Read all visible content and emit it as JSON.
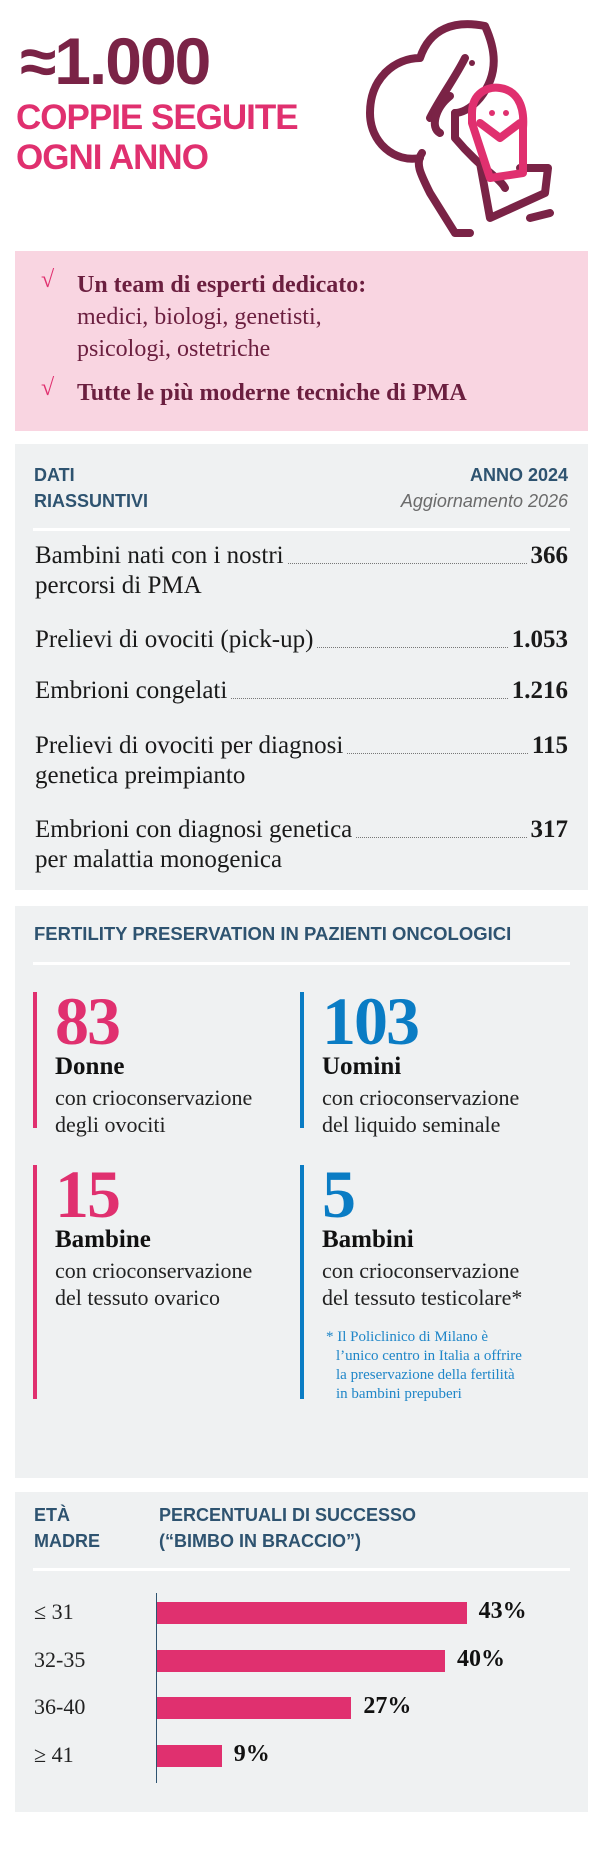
{
  "header": {
    "headline": "≈1.000",
    "subline1": "COPPIE SEGUITE",
    "subline2": "OGNI ANNO",
    "illustration": "mother-holding-baby-icon"
  },
  "highlights": {
    "check_icon": "√",
    "items": [
      {
        "bold": "Un team di esperti dedicato:",
        "lines": [
          "medici, biologi, genetisti,",
          "psicologi, ostetriche"
        ]
      },
      {
        "bold": "Tutte le più moderne tecniche di PMA",
        "lines": []
      }
    ]
  },
  "summary": {
    "title_line1": "DATI",
    "title_line2": "RIASSUNTIVI",
    "year": "ANNO 2024",
    "update": "Aggiornamento 2026",
    "rows": [
      {
        "label1": "Bambini nati con i nostri",
        "label2": "percorsi di PMA",
        "value": "366"
      },
      {
        "label1": "Prelievi di ovociti (pick-up)",
        "label2": "",
        "value": "1.053"
      },
      {
        "label1": "Embrioni congelati",
        "label2": "",
        "value": "1.216"
      },
      {
        "label1": "Prelievi di ovociti per diagnosi",
        "label2": "genetica preimpianto",
        "value": "115"
      },
      {
        "label1": "Embrioni con diagnosi genetica",
        "label2": "per malattia monogenica",
        "value": "317"
      }
    ]
  },
  "fertility": {
    "title": "FERTILITY PRESERVATION IN PAZIENTI ONCOLOGICI",
    "stats": [
      {
        "number": "83",
        "who": "Donne",
        "desc1": "con crioconservazione",
        "desc2": "degli ovociti",
        "color": "#e0306f"
      },
      {
        "number": "103",
        "who": "Uomini",
        "desc1": "con crioconservazione",
        "desc2": "del liquido seminale",
        "color": "#0a7cc4"
      },
      {
        "number": "15",
        "who": "Bambine",
        "desc1": "con crioconservazione",
        "desc2": "del tessuto ovarico",
        "color": "#e0306f"
      },
      {
        "number": "5",
        "who": "Bambini",
        "desc1": "con crioconservazione",
        "desc2": "del tessuto testicolare*",
        "color": "#0a7cc4"
      }
    ],
    "footnote": [
      "* Il Policlinico di Milano è",
      "l’unico centro in Italia a offrire",
      "la preservazione della fertilità",
      "in bambini prepuberi"
    ]
  },
  "chart_data": {
    "type": "bar",
    "orientation": "horizontal",
    "title": "PERCENTUALI DI SUCCESSO (“BIMBO IN BRACCIO”)",
    "title_line1": "PERCENTUALI DI SUCCESSO",
    "title_line2": "(“BIMBO IN BRACCIO”)",
    "category_header_line1": "ETÀ",
    "category_header_line2": "MADRE",
    "categories": [
      "≤ 31",
      "32-35",
      "36-40",
      "≥ 41"
    ],
    "values": [
      43,
      40,
      27,
      9
    ],
    "labels": [
      "43%",
      "40%",
      "27%",
      "9%"
    ],
    "bar_color": "#e0306f",
    "grid": false
  }
}
